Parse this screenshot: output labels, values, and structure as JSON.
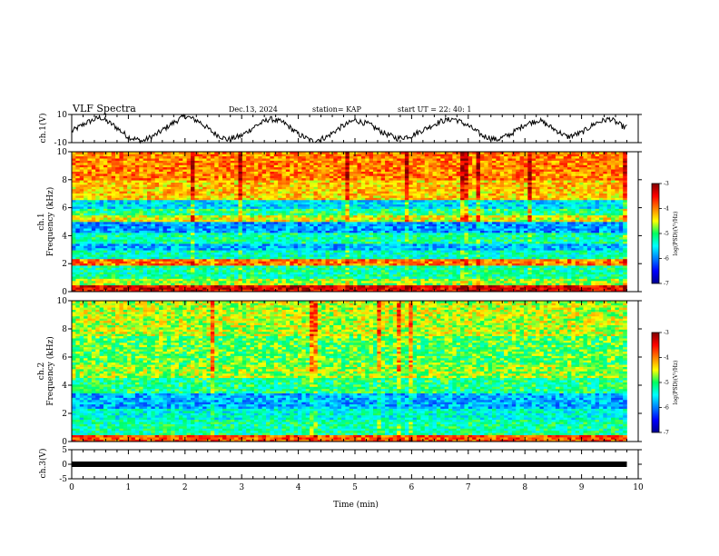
{
  "header": {
    "title": "VLF Spectra",
    "date": "Dec.13, 2024",
    "station": "station= KAP",
    "start": "start  UT =   22: 40: 1"
  },
  "chart_data": [
    {
      "type": "line",
      "id": "ch1-waveform",
      "ylabel": "ch.1(V)",
      "ylim": [
        -10,
        10
      ],
      "yticks": [
        -10,
        10
      ],
      "x_range": [
        0,
        10
      ],
      "data_end_min": 9.8,
      "series": [
        {
          "x": [
            0.0,
            0.25,
            0.5,
            0.75,
            1.0,
            1.25,
            1.5,
            1.75,
            2.0,
            2.25,
            2.5,
            2.75,
            3.0,
            3.25,
            3.5,
            3.75,
            4.0,
            4.25,
            4.5,
            4.75,
            5.0,
            5.25,
            5.5,
            5.75,
            6.0,
            6.25,
            6.5,
            6.75,
            7.0,
            7.25,
            7.5,
            7.75,
            8.0,
            8.25,
            8.5,
            8.75,
            9.0,
            9.25,
            9.5,
            9.75
          ],
          "y": [
            -2,
            4,
            8,
            2,
            -6,
            -9,
            -4,
            3,
            9,
            5,
            -3,
            -8,
            -5,
            2,
            7,
            4,
            -4,
            -9,
            -6,
            1,
            6,
            3,
            -3,
            -7,
            -5,
            0,
            5,
            7,
            2,
            -5,
            -8,
            -4,
            3,
            6,
            0,
            -6,
            -3,
            4,
            7,
            1
          ]
        }
      ]
    },
    {
      "type": "heatmap",
      "id": "ch1-spectrogram",
      "ylabel": "ch.1\nFrequency  (kHz)",
      "ylim": [
        0,
        10
      ],
      "yticks": [
        0,
        2,
        4,
        6,
        8,
        10
      ],
      "x_range": [
        0,
        10
      ],
      "data_end_min": 9.8,
      "bands": [
        {
          "f": [
            0,
            0.4
          ],
          "level": -3.4
        },
        {
          "f": [
            0.4,
            1.0
          ],
          "level": -4.7
        },
        {
          "f": [
            1.0,
            1.9
          ],
          "level": -5.2
        },
        {
          "f": [
            1.9,
            2.4
          ],
          "level": -4.0
        },
        {
          "f": [
            2.4,
            2.9
          ],
          "level": -5.3
        },
        {
          "f": [
            2.9,
            3.5
          ],
          "level": -5.8
        },
        {
          "f": [
            3.5,
            4.2
          ],
          "level": -5.2
        },
        {
          "f": [
            4.2,
            5.0
          ],
          "level": -5.9
        },
        {
          "f": [
            5.0,
            5.4
          ],
          "level": -4.5
        },
        {
          "f": [
            5.4,
            6.0
          ],
          "level": -5.1
        },
        {
          "f": [
            6.0,
            6.5
          ],
          "level": -5.6
        },
        {
          "f": [
            6.5,
            8.0
          ],
          "level": -4.3
        },
        {
          "f": [
            8.0,
            10.0
          ],
          "level": -4.0
        }
      ],
      "colorbar": {
        "label": "log(PSD)(V²/Hz)",
        "range": [
          -7,
          -3
        ],
        "ticks": [
          -7,
          -6,
          -5,
          -4,
          -3
        ]
      }
    },
    {
      "type": "heatmap",
      "id": "ch2-spectrogram",
      "ylabel": "ch.2\nFrequency  (kHz)",
      "ylim": [
        0,
        10
      ],
      "yticks": [
        0,
        2,
        4,
        6,
        8,
        10
      ],
      "x_range": [
        0,
        10
      ],
      "data_end_min": 9.8,
      "bands": [
        {
          "f": [
            0,
            0.4
          ],
          "level": -3.8
        },
        {
          "f": [
            0.4,
            1.5
          ],
          "level": -5.2
        },
        {
          "f": [
            1.5,
            2.3
          ],
          "level": -5.4
        },
        {
          "f": [
            2.3,
            3.5
          ],
          "level": -5.8
        },
        {
          "f": [
            3.5,
            4.5
          ],
          "level": -5.1
        },
        {
          "f": [
            4.5,
            5.5
          ],
          "level": -4.7
        },
        {
          "f": [
            5.5,
            7.5
          ],
          "level": -4.9
        },
        {
          "f": [
            7.5,
            10.0
          ],
          "level": -4.6
        }
      ],
      "colorbar": {
        "label": "log(PSD)(V²/Hz)",
        "range": [
          -7,
          -3
        ],
        "ticks": [
          -7,
          -6,
          -5,
          -4,
          -3
        ]
      }
    },
    {
      "type": "line",
      "id": "ch3-waveform",
      "ylabel": "ch.3(V)",
      "ylim": [
        -5,
        5
      ],
      "yticks": [
        -5,
        0,
        5
      ],
      "x_range": [
        0,
        10
      ],
      "data_end_min": 9.8,
      "series": [
        {
          "x": [
            0,
            9.8
          ],
          "y": [
            0,
            0
          ]
        }
      ],
      "xlabel": "Time  (min)",
      "xticks": [
        0,
        1,
        2,
        3,
        4,
        5,
        6,
        7,
        8,
        9,
        10
      ]
    }
  ]
}
